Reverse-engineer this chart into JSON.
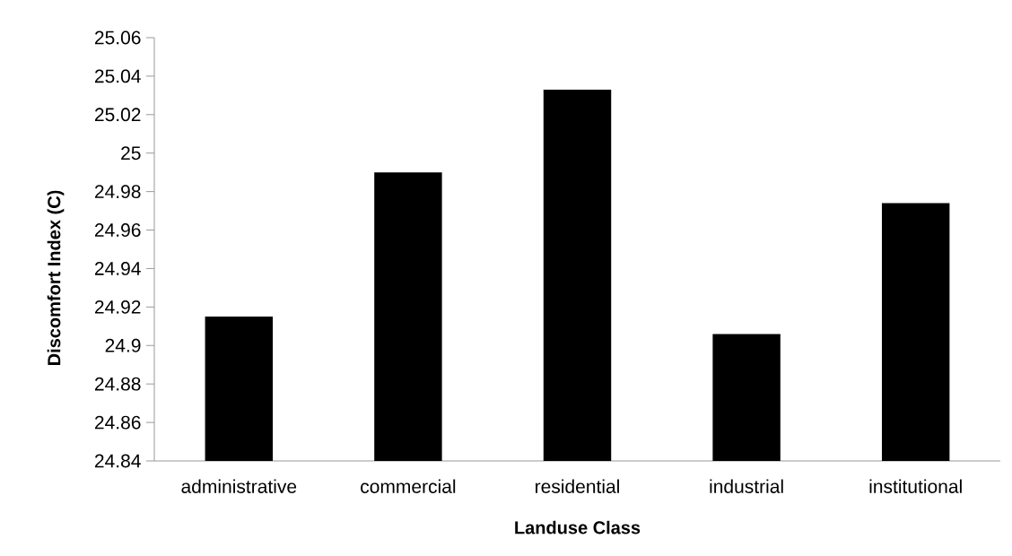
{
  "chart_data": {
    "type": "bar",
    "xlabel": "Landuse Class",
    "ylabel": "Discomfort Index (C)",
    "categories": [
      "administrative",
      "commercial",
      "residential",
      "industrial",
      "institutional"
    ],
    "values": [
      24.915,
      24.99,
      25.033,
      24.906,
      24.974
    ],
    "color": "#000000",
    "ylim": [
      24.84,
      25.06
    ],
    "yticks": [
      24.84,
      24.86,
      24.88,
      24.9,
      24.92,
      24.94,
      24.96,
      24.98,
      25,
      25.02,
      25.04,
      25.06
    ],
    "grid": false
  }
}
